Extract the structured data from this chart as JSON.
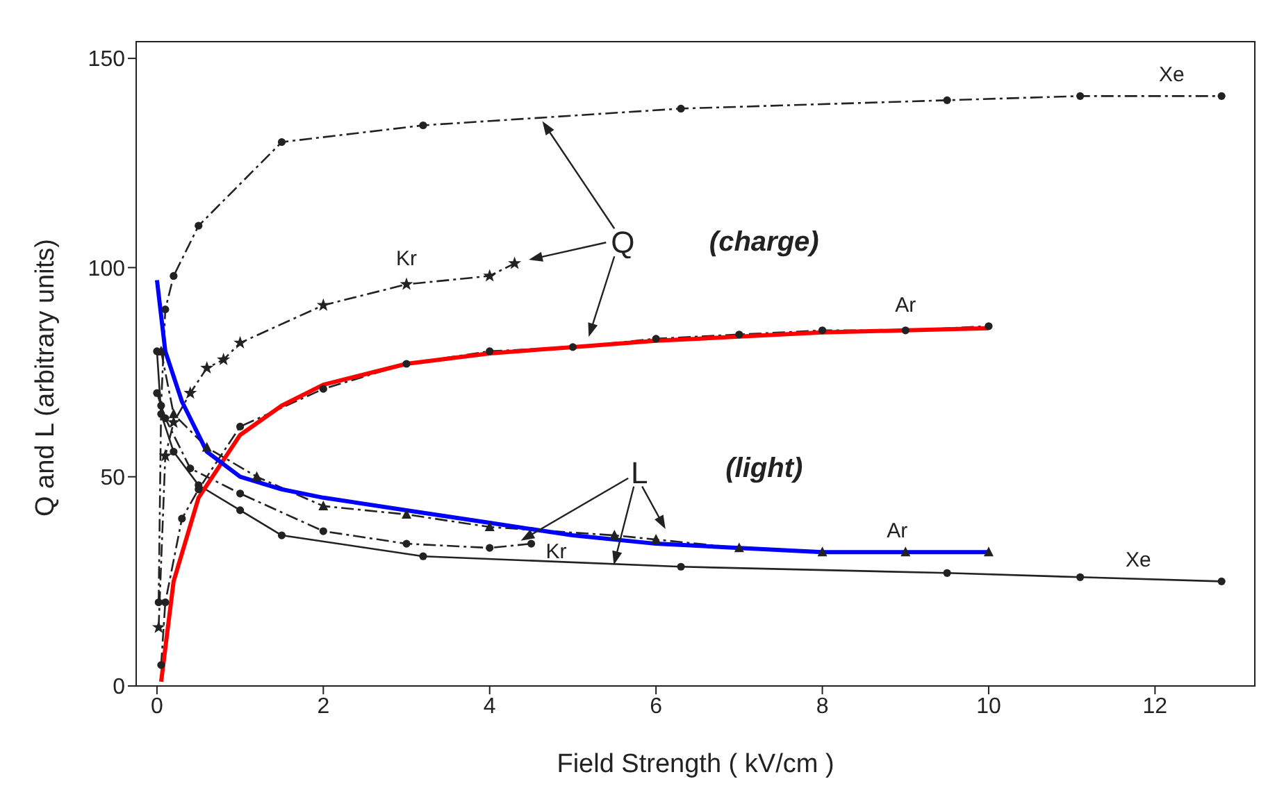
{
  "chart_data": {
    "type": "line",
    "xlabel": "Field Strength ( kV/cm )",
    "ylabel": "Q and L (arbitrary units)",
    "xlim": [
      -0.25,
      13.2
    ],
    "ylim": [
      0,
      154
    ],
    "xticks": [
      0,
      2,
      4,
      6,
      8,
      10,
      12
    ],
    "yticks": [
      0,
      50,
      100,
      150
    ],
    "grid": false,
    "series": [
      {
        "color": "#222222",
        "marker": "circle",
        "line_style": "dashed",
        "x": [
          0.02,
          0.05,
          0.1,
          0.2,
          0.5,
          1.5,
          3.2,
          6.3,
          9.5,
          11.1,
          12.8
        ],
        "values": [
          20,
          67,
          90,
          98,
          110,
          130,
          134,
          138,
          140,
          141,
          141
        ]
      },
      {
        "color": "#222222",
        "marker": "star",
        "line_style": "dashed",
        "x": [
          0.02,
          0.1,
          0.2,
          0.4,
          0.6,
          0.8,
          1,
          2,
          3,
          4,
          4.3
        ],
        "values": [
          14,
          55,
          63,
          70,
          76,
          78,
          82,
          91,
          96,
          98,
          101
        ]
      },
      {
        "color": "#222222",
        "marker": "circle",
        "line_style": "dashed",
        "x": [
          0.05,
          0.1,
          0.3,
          0.5,
          1,
          2,
          3,
          4,
          5,
          6,
          7,
          8,
          9,
          10
        ],
        "values": [
          5,
          20,
          40,
          47,
          62,
          71,
          77,
          80,
          81,
          83,
          84,
          85,
          85,
          86
        ]
      },
      {
        "color": "#222222",
        "marker": "circle",
        "line_style": "solid",
        "x": [
          0,
          0.05,
          0.2,
          0.5,
          1,
          1.5,
          3.2,
          6.3,
          9.5,
          11.1,
          12.8
        ],
        "values": [
          80,
          65,
          56,
          48,
          42,
          36,
          31,
          28.5,
          27,
          26,
          25
        ]
      },
      {
        "color": "#222222",
        "marker": "circle",
        "line_style": "dashed",
        "x": [
          0,
          0.1,
          0.4,
          1,
          2,
          3,
          4,
          4.5
        ],
        "values": [
          70,
          64,
          52,
          46,
          37,
          34,
          33,
          34
        ]
      },
      {
        "color": "#222222",
        "marker": "triangle",
        "line_style": "dashed",
        "x": [
          0.05,
          0.2,
          0.6,
          1.2,
          2,
          3,
          4,
          5.5,
          6,
          7,
          8,
          9,
          10
        ],
        "values": [
          80,
          65,
          57,
          50,
          43,
          41,
          38,
          36,
          35,
          33,
          32,
          32,
          32
        ]
      },
      {
        "color": "#ff0000",
        "marker": "none",
        "line_style": "solid",
        "x": [
          0.05,
          0.2,
          0.5,
          1,
          1.5,
          2,
          3,
          4,
          5,
          6,
          7,
          8,
          9,
          10
        ],
        "values": [
          1,
          25,
          45,
          60,
          67,
          72,
          77,
          79.5,
          81,
          82.5,
          83.5,
          84.5,
          85,
          85.5
        ]
      },
      {
        "color": "#0000ff",
        "marker": "none",
        "line_style": "solid",
        "x": [
          0,
          0.1,
          0.3,
          0.6,
          1,
          1.5,
          2,
          3,
          4,
          5,
          6,
          7,
          8,
          9,
          10
        ],
        "values": [
          97,
          80,
          68,
          56,
          50,
          47,
          45,
          42,
          39,
          36,
          34,
          33,
          32,
          32,
          32
        ]
      }
    ],
    "annotations": [
      "Xe",
      "Kr",
      "Ar",
      "Q",
      "(charge)",
      "L",
      "(light)",
      "Ar",
      "Kr",
      "Xe"
    ]
  }
}
